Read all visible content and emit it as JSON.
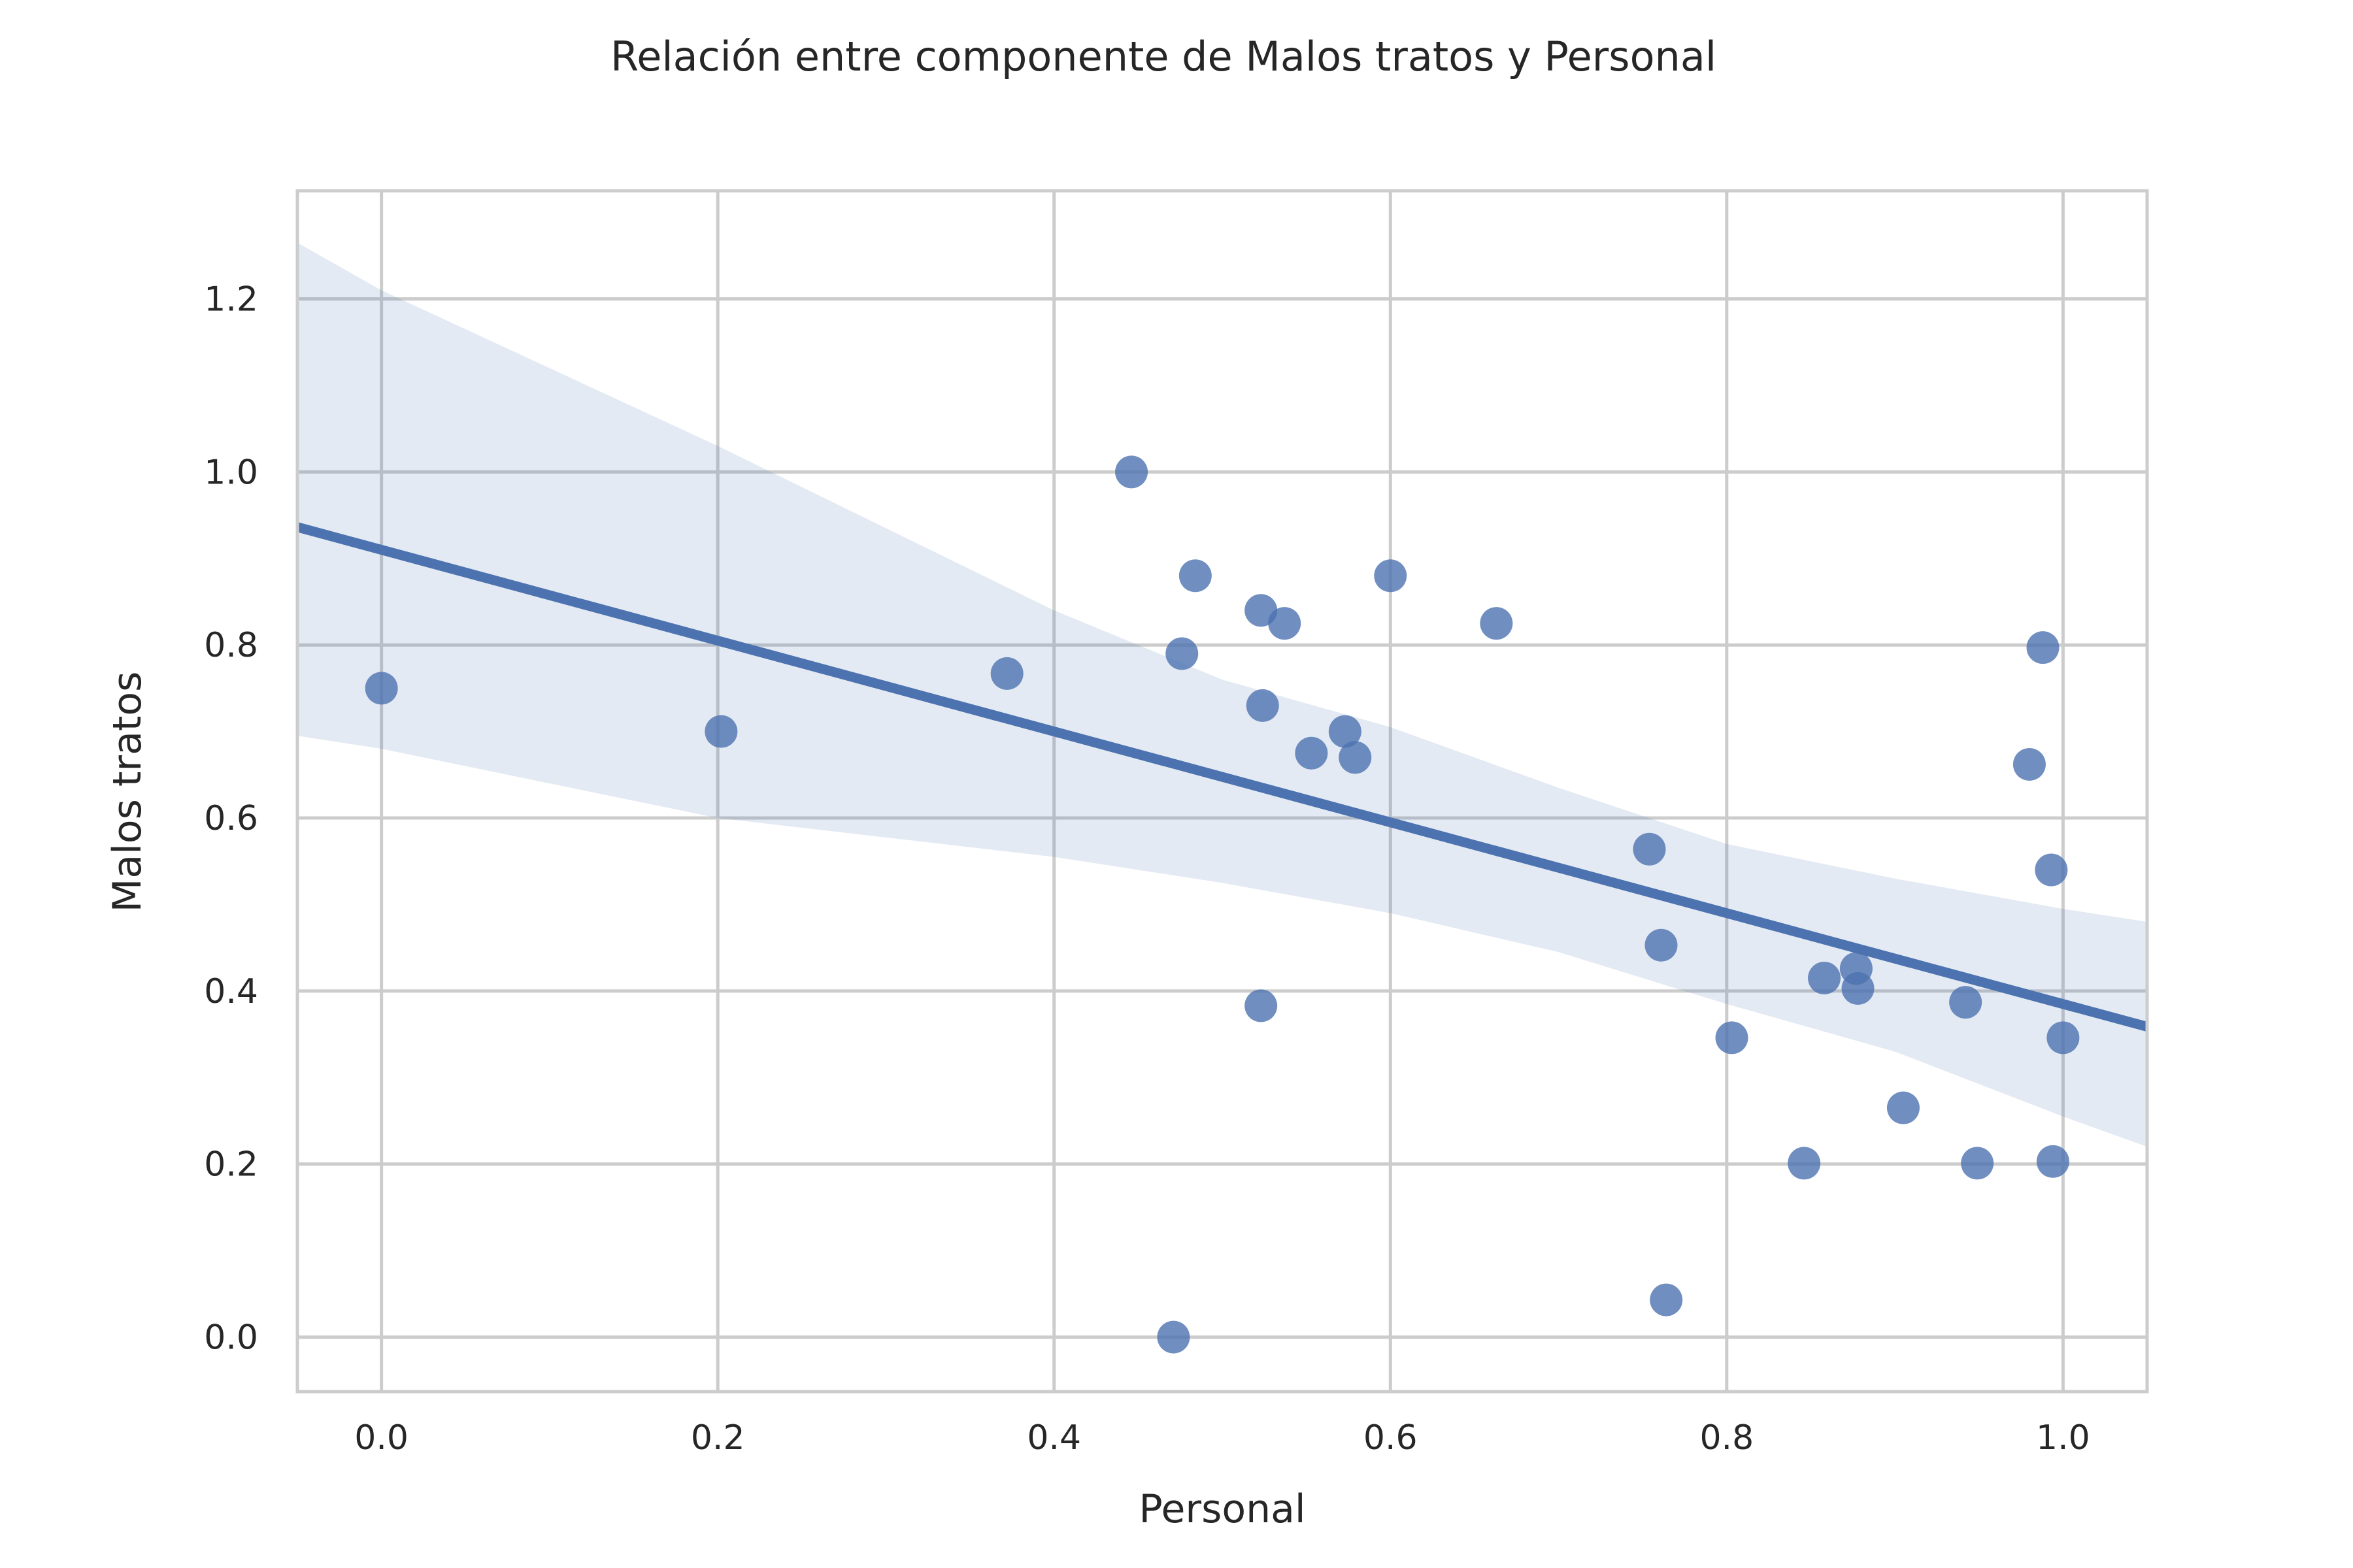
{
  "chart_data": {
    "type": "scatter",
    "title": "Relación entre componente de Malos tratos y Personal",
    "xlabel": "Personal",
    "ylabel": "Malos tratos",
    "xlim": [
      -0.05,
      1.05
    ],
    "ylim": [
      -0.063,
      1.325
    ],
    "xticks": [
      0.0,
      0.2,
      0.4,
      0.6,
      0.8,
      1.0
    ],
    "xtick_labels": [
      "0.0",
      "0.2",
      "0.4",
      "0.6",
      "0.8",
      "1.0"
    ],
    "yticks": [
      0.0,
      0.2,
      0.4,
      0.6,
      0.8,
      1.0,
      1.2
    ],
    "ytick_labels": [
      "0.0",
      "0.2",
      "0.4",
      "0.6",
      "0.8",
      "1.0",
      "1.2"
    ],
    "grid": true,
    "colors": {
      "points": "#4c72b0",
      "line": "#4c72b0",
      "band": "#4c72b0",
      "grid": "#cccccc",
      "text": "#262626"
    },
    "points": [
      {
        "x": 0.0,
        "y": 0.75
      },
      {
        "x": 0.202,
        "y": 0.7
      },
      {
        "x": 0.372,
        "y": 0.767
      },
      {
        "x": 0.446,
        "y": 1.0
      },
      {
        "x": 0.471,
        "y": 0.0
      },
      {
        "x": 0.476,
        "y": 0.79
      },
      {
        "x": 0.484,
        "y": 0.88
      },
      {
        "x": 0.523,
        "y": 0.84
      },
      {
        "x": 0.523,
        "y": 0.383
      },
      {
        "x": 0.524,
        "y": 0.73
      },
      {
        "x": 0.537,
        "y": 0.825
      },
      {
        "x": 0.553,
        "y": 0.675
      },
      {
        "x": 0.573,
        "y": 0.7
      },
      {
        "x": 0.579,
        "y": 0.67
      },
      {
        "x": 0.6,
        "y": 0.88
      },
      {
        "x": 0.663,
        "y": 0.825
      },
      {
        "x": 0.754,
        "y": 0.564
      },
      {
        "x": 0.761,
        "y": 0.453
      },
      {
        "x": 0.764,
        "y": 0.043
      },
      {
        "x": 0.803,
        "y": 0.346
      },
      {
        "x": 0.846,
        "y": 0.201
      },
      {
        "x": 0.858,
        "y": 0.415
      },
      {
        "x": 0.877,
        "y": 0.426
      },
      {
        "x": 0.878,
        "y": 0.403
      },
      {
        "x": 0.905,
        "y": 0.265
      },
      {
        "x": 0.942,
        "y": 0.387
      },
      {
        "x": 0.949,
        "y": 0.201
      },
      {
        "x": 0.98,
        "y": 0.662
      },
      {
        "x": 0.988,
        "y": 0.797
      },
      {
        "x": 0.993,
        "y": 0.54
      },
      {
        "x": 0.994,
        "y": 0.203
      },
      {
        "x": 1.0,
        "y": 0.346
      }
    ],
    "regression": {
      "intercept": 0.91,
      "slope": -0.525
    },
    "confidence_band": {
      "x": [
        -0.05,
        0.0,
        0.2,
        0.4,
        0.5,
        0.6,
        0.7,
        0.8,
        0.9,
        1.0,
        1.05
      ],
      "upper": [
        1.265,
        1.21,
        1.03,
        0.84,
        0.76,
        0.705,
        0.635,
        0.57,
        0.53,
        0.495,
        0.48
      ],
      "lower": [
        0.695,
        0.68,
        0.6,
        0.555,
        0.525,
        0.49,
        0.445,
        0.385,
        0.33,
        0.255,
        0.22
      ]
    }
  }
}
